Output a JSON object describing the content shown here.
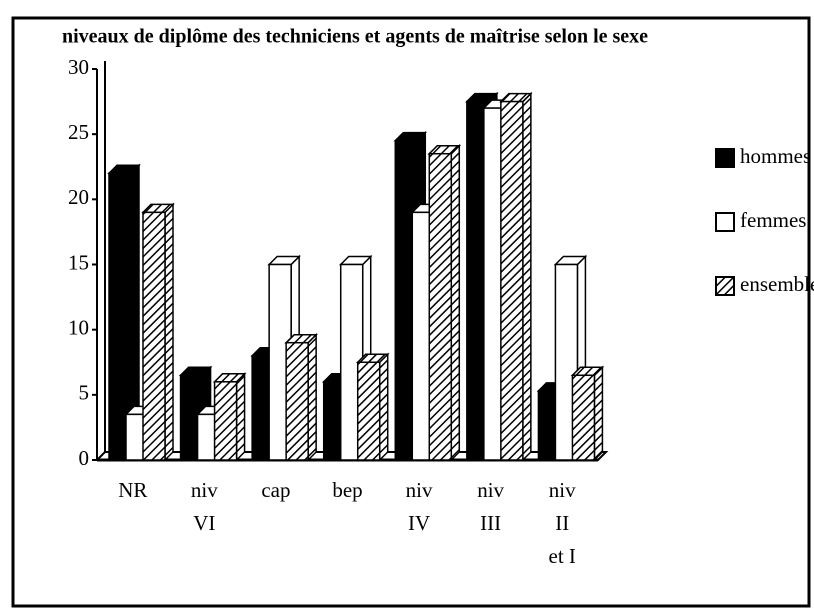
{
  "chart_data": {
    "type": "bar",
    "title": "niveaux de diplôme des techniciens et agents de maîtrise selon le sexe",
    "categories": [
      [
        "NR"
      ],
      [
        "niv",
        "VI"
      ],
      [
        "cap"
      ],
      [
        "bep"
      ],
      [
        "niv",
        "IV"
      ],
      [
        "niv",
        "III"
      ],
      [
        "niv",
        "II",
        "et I"
      ]
    ],
    "series": [
      {
        "name": "hommes",
        "color": "#000000",
        "values": [
          22,
          6.5,
          8,
          6,
          24.5,
          27.5,
          5.3
        ]
      },
      {
        "name": "femmes",
        "color": "#ffffff",
        "values": [
          3.5,
          3.5,
          15,
          15,
          19,
          27,
          15
        ]
      },
      {
        "name": "ensemble",
        "color": "#000000",
        "pattern": "hatch",
        "values": [
          19,
          6,
          9,
          7.5,
          23.5,
          27.5,
          6.5
        ]
      }
    ],
    "ylim": [
      0,
      30
    ],
    "yticks": [
      0,
      5,
      10,
      15,
      20,
      25,
      30
    ],
    "legend": "right"
  }
}
